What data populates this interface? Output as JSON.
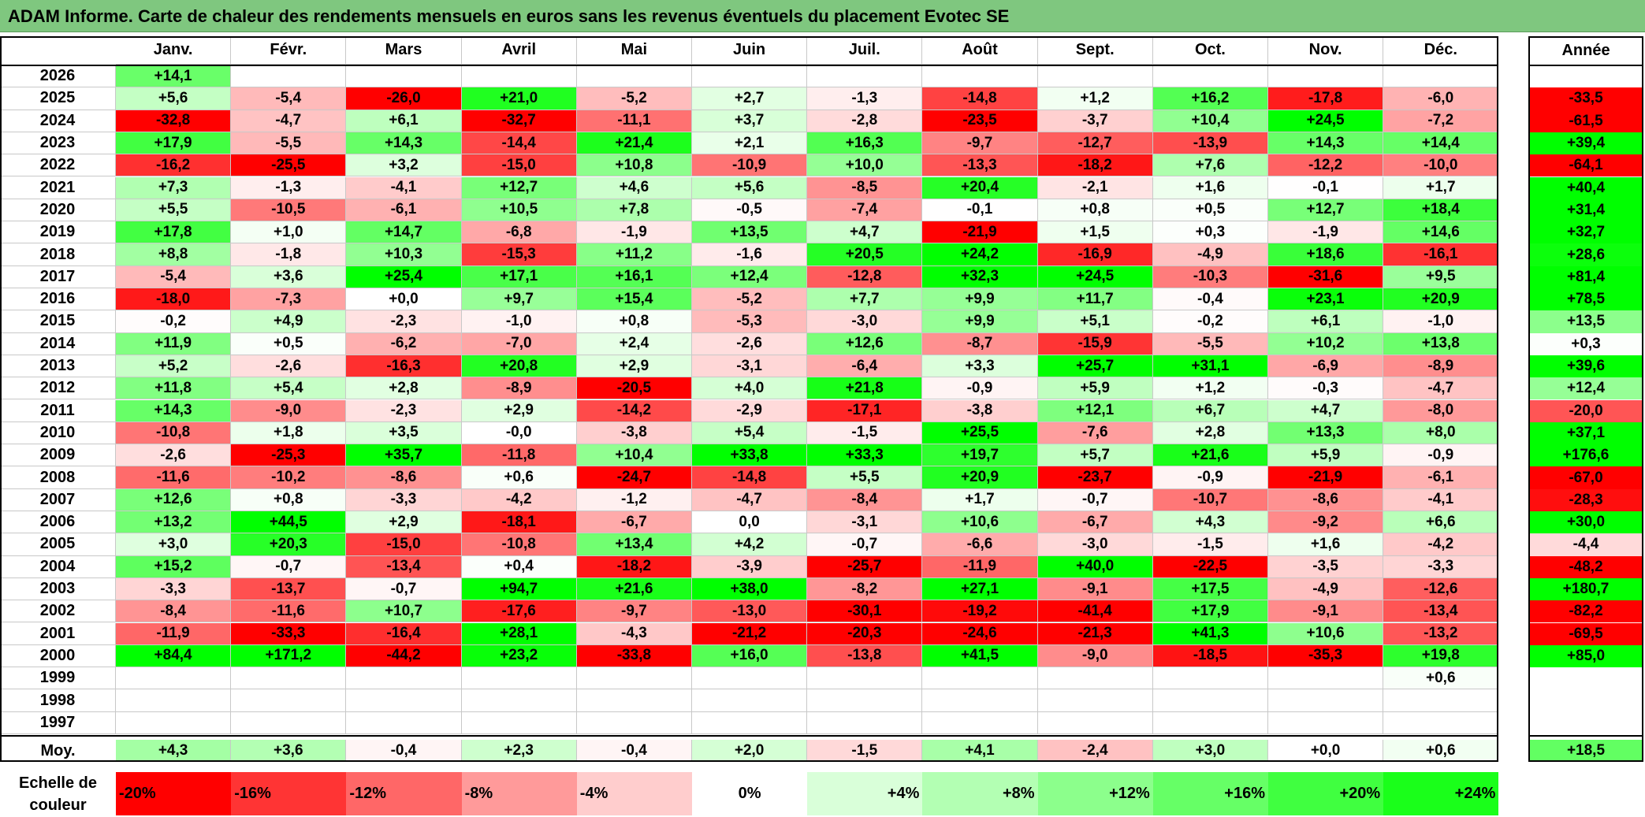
{
  "title": "ADAM Informe. Carte de chaleur des rendements mensuels en euros sans les revenus éventuels du placement Evotec SE",
  "chart_data": {
    "type": "heatmap",
    "columns": [
      "Janv.",
      "Févr.",
      "Mars",
      "Avril",
      "Mai",
      "Juin",
      "Juil.",
      "Août",
      "Sept.",
      "Oct.",
      "Nov.",
      "Déc."
    ],
    "year_column_label": "Année",
    "average_row_label": "Moy.",
    "rows": [
      {
        "year": "2026",
        "months": [
          "+14,1",
          "",
          "",
          "",
          "",
          "",
          "",
          "",
          "",
          "",
          "",
          ""
        ],
        "annual": ""
      },
      {
        "year": "2025",
        "months": [
          "+5,6",
          "-5,4",
          "-26,0",
          "+21,0",
          "-5,2",
          "+2,7",
          "-1,3",
          "-14,8",
          "+1,2",
          "+16,2",
          "-17,8",
          "-6,0"
        ],
        "annual": "-33,5"
      },
      {
        "year": "2024",
        "months": [
          "-32,8",
          "-4,7",
          "+6,1",
          "-32,7",
          "-11,1",
          "+3,7",
          "-2,8",
          "-23,5",
          "-3,7",
          "+10,4",
          "+24,5",
          "-7,2"
        ],
        "annual": "-61,5"
      },
      {
        "year": "2023",
        "months": [
          "+17,9",
          "-5,5",
          "+14,3",
          "-14,4",
          "+21,4",
          "+2,1",
          "+16,3",
          "-9,7",
          "-12,7",
          "-13,9",
          "+14,3",
          "+14,4"
        ],
        "annual": "+39,4"
      },
      {
        "year": "2022",
        "months": [
          "-16,2",
          "-25,5",
          "+3,2",
          "-15,0",
          "+10,8",
          "-10,9",
          "+10,0",
          "-13,3",
          "-18,2",
          "+7,6",
          "-12,2",
          "-10,0"
        ],
        "annual": "-64,1"
      },
      {
        "year": "2021",
        "months": [
          "+7,3",
          "-1,3",
          "-4,1",
          "+12,7",
          "+4,6",
          "+5,6",
          "-8,5",
          "+20,4",
          "-2,1",
          "+1,6",
          "-0,1",
          "+1,7"
        ],
        "annual": "+40,4"
      },
      {
        "year": "2020",
        "months": [
          "+5,5",
          "-10,5",
          "-6,1",
          "+10,5",
          "+7,8",
          "-0,5",
          "-7,4",
          "-0,1",
          "+0,8",
          "+0,5",
          "+12,7",
          "+18,4"
        ],
        "annual": "+31,4"
      },
      {
        "year": "2019",
        "months": [
          "+17,8",
          "+1,0",
          "+14,7",
          "-6,8",
          "-1,9",
          "+13,5",
          "+4,7",
          "-21,9",
          "+1,5",
          "+0,3",
          "-1,9",
          "+14,6"
        ],
        "annual": "+32,7"
      },
      {
        "year": "2018",
        "months": [
          "+8,8",
          "-1,8",
          "+10,3",
          "-15,3",
          "+11,2",
          "-1,6",
          "+20,5",
          "+24,2",
          "-16,9",
          "-4,9",
          "+18,6",
          "-16,1"
        ],
        "annual": "+28,6"
      },
      {
        "year": "2017",
        "months": [
          "-5,4",
          "+3,6",
          "+25,4",
          "+17,1",
          "+16,1",
          "+12,4",
          "-12,8",
          "+32,3",
          "+24,5",
          "-10,3",
          "-31,6",
          "+9,5"
        ],
        "annual": "+81,4"
      },
      {
        "year": "2016",
        "months": [
          "-18,0",
          "-7,3",
          "+0,0",
          "+9,7",
          "+15,4",
          "-5,2",
          "+7,7",
          "+9,9",
          "+11,7",
          "-0,4",
          "+23,1",
          "+20,9"
        ],
        "annual": "+78,5"
      },
      {
        "year": "2015",
        "months": [
          "-0,2",
          "+4,9",
          "-2,3",
          "-1,0",
          "+0,8",
          "-5,3",
          "-3,0",
          "+9,9",
          "+5,1",
          "-0,2",
          "+6,1",
          "-1,0"
        ],
        "annual": "+13,5"
      },
      {
        "year": "2014",
        "months": [
          "+11,9",
          "+0,5",
          "-6,2",
          "-7,0",
          "+2,4",
          "-2,6",
          "+12,6",
          "-8,7",
          "-15,9",
          "-5,5",
          "+10,2",
          "+13,8"
        ],
        "annual": "+0,3"
      },
      {
        "year": "2013",
        "months": [
          "+5,2",
          "-2,6",
          "-16,3",
          "+20,8",
          "+2,9",
          "-3,1",
          "-6,4",
          "+3,3",
          "+25,7",
          "+31,1",
          "-6,9",
          "-8,9"
        ],
        "annual": "+39,6"
      },
      {
        "year": "2012",
        "months": [
          "+11,8",
          "+5,4",
          "+2,8",
          "-8,9",
          "-20,5",
          "+4,0",
          "+21,8",
          "-0,9",
          "+5,9",
          "+1,2",
          "-0,3",
          "-4,7"
        ],
        "annual": "+12,4"
      },
      {
        "year": "2011",
        "months": [
          "+14,3",
          "-9,0",
          "-2,3",
          "+2,9",
          "-14,2",
          "-2,9",
          "-17,1",
          "-3,8",
          "+12,1",
          "+6,7",
          "+4,7",
          "-8,0"
        ],
        "annual": "-20,0"
      },
      {
        "year": "2010",
        "months": [
          "-10,8",
          "+1,8",
          "+3,5",
          "-0,0",
          "-3,8",
          "+5,4",
          "-1,5",
          "+25,5",
          "-7,6",
          "+2,8",
          "+13,3",
          "+8,0"
        ],
        "annual": "+37,1"
      },
      {
        "year": "2009",
        "months": [
          "-2,6",
          "-25,3",
          "+35,7",
          "-11,8",
          "+10,4",
          "+33,8",
          "+33,3",
          "+19,7",
          "+5,7",
          "+21,6",
          "+5,9",
          "-0,9"
        ],
        "annual": "+176,6"
      },
      {
        "year": "2008",
        "months": [
          "-11,6",
          "-10,2",
          "-8,6",
          "+0,6",
          "-24,7",
          "-14,8",
          "+5,5",
          "+20,9",
          "-23,7",
          "-0,9",
          "-21,9",
          "-6,1"
        ],
        "annual": "-67,0"
      },
      {
        "year": "2007",
        "months": [
          "+12,6",
          "+0,8",
          "-3,3",
          "-4,2",
          "-1,2",
          "-4,7",
          "-8,4",
          "+1,7",
          "-0,7",
          "-10,7",
          "-8,6",
          "-4,1"
        ],
        "annual": "-28,3"
      },
      {
        "year": "2006",
        "months": [
          "+13,2",
          "+44,5",
          "+2,9",
          "-18,1",
          "-6,7",
          "0,0",
          "-3,1",
          "+10,6",
          "-6,7",
          "+4,3",
          "-9,2",
          "+6,6"
        ],
        "annual": "+30,0"
      },
      {
        "year": "2005",
        "months": [
          "+3,0",
          "+20,3",
          "-15,0",
          "-10,8",
          "+13,4",
          "+4,2",
          "-0,7",
          "-6,6",
          "-3,0",
          "-1,5",
          "+1,6",
          "-4,2"
        ],
        "annual": "-4,4"
      },
      {
        "year": "2004",
        "months": [
          "+15,2",
          "-0,7",
          "-13,4",
          "+0,4",
          "-18,2",
          "-3,9",
          "-25,7",
          "-11,9",
          "+40,0",
          "-22,5",
          "-3,5",
          "-3,3"
        ],
        "annual": "-48,2"
      },
      {
        "year": "2003",
        "months": [
          "-3,3",
          "-13,7",
          "-0,7",
          "+94,7",
          "+21,6",
          "+38,0",
          "-8,2",
          "+27,1",
          "-9,1",
          "+17,5",
          "-4,9",
          "-12,6"
        ],
        "annual": "+180,7"
      },
      {
        "year": "2002",
        "months": [
          "-8,4",
          "-11,6",
          "+10,7",
          "-17,6",
          "-9,7",
          "-13,0",
          "-30,1",
          "-19,2",
          "-41,4",
          "+17,9",
          "-9,1",
          "-13,4"
        ],
        "annual": "-82,2"
      },
      {
        "year": "2001",
        "months": [
          "-11,9",
          "-33,3",
          "-16,4",
          "+28,1",
          "-4,3",
          "-21,2",
          "-20,3",
          "-24,6",
          "-21,3",
          "+41,3",
          "+10,6",
          "-13,2"
        ],
        "annual": "-69,5"
      },
      {
        "year": "2000",
        "months": [
          "+84,4",
          "+171,2",
          "-44,2",
          "+23,2",
          "-33,8",
          "+16,0",
          "-13,8",
          "+41,5",
          "-9,0",
          "-18,5",
          "-35,3",
          "+19,8"
        ],
        "annual": "+85,0"
      },
      {
        "year": "1999",
        "months": [
          "",
          "",
          "",
          "",
          "",
          "",
          "",
          "",
          "",
          "",
          "",
          "+0,6"
        ],
        "annual": ""
      },
      {
        "year": "1998",
        "months": [
          "",
          "",
          "",
          "",
          "",
          "",
          "",
          "",
          "",
          "",
          "",
          ""
        ],
        "annual": ""
      },
      {
        "year": "1997",
        "months": [
          "",
          "",
          "",
          "",
          "",
          "",
          "",
          "",
          "",
          "",
          "",
          ""
        ],
        "annual": ""
      }
    ],
    "averages": [
      "+4,3",
      "+3,6",
      "-0,4",
      "+2,3",
      "-0,4",
      "+2,0",
      "-1,5",
      "+4,1",
      "-2,4",
      "+3,0",
      "+0,0",
      "+0,6"
    ],
    "average_annual": "+18,5",
    "scale_label": "Echelle de couleur",
    "scale": [
      {
        "label": "-20%",
        "color": "#ff0000"
      },
      {
        "label": "-16%",
        "color": "#ff3434"
      },
      {
        "label": "-12%",
        "color": "#ff6767"
      },
      {
        "label": "-8%",
        "color": "#ff9a9a"
      },
      {
        "label": "-4%",
        "color": "#ffcdcd"
      },
      {
        "label": "0%",
        "color": "#ffffff"
      },
      {
        "label": "+4%",
        "color": "#d9ffd9"
      },
      {
        "label": "+8%",
        "color": "#b3ffb3"
      },
      {
        "label": "+12%",
        "color": "#8cff8c"
      },
      {
        "label": "+16%",
        "color": "#66ff66"
      },
      {
        "label": "+20%",
        "color": "#40ff40"
      },
      {
        "label": "+24%",
        "color": "#1aff1a"
      }
    ],
    "color_saturation_percent": {
      "negative": -20,
      "positive": 24
    },
    "annual_saturation_percent": 30
  }
}
